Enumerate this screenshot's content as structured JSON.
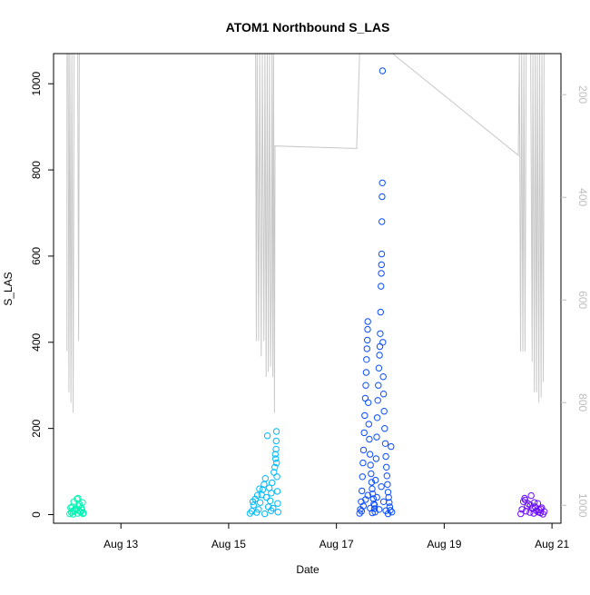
{
  "chart_data": {
    "type": "scatter",
    "title": "ATOM1 Northbound S_LAS",
    "xlabel": "Date",
    "ylabel": "S_LAS",
    "x_ticks": [
      "Aug 13",
      "Aug 15",
      "Aug 17",
      "Aug 19",
      "Aug 21"
    ],
    "y_ticks": [
      "0",
      "200",
      "400",
      "600",
      "800",
      "1000"
    ],
    "y2_ticks": [
      "200",
      "400",
      "600",
      "800",
      "1000"
    ],
    "xlim": [
      "2019-08-11T18:00",
      "2019-08-21T04:00"
    ],
    "ylim": [
      -20,
      1070
    ],
    "y2lim_reversed": [
      120,
      1035
    ],
    "grid": false,
    "legend": "none",
    "colors": {
      "line_series": "#c8c8c8",
      "cluster1": "#00f5b4",
      "cluster2": "#00b8ff",
      "cluster3": "#0a4dff",
      "cluster4": "#6a0dff",
      "axis": "#000000",
      "secondary_axis": "#bdbdbd"
    },
    "series": [
      {
        "marker": "open-circle",
        "color_key": "cluster1",
        "points": [
          [
            "2019-08-12T01:12",
            2
          ],
          [
            "2019-08-12T01:55",
            5
          ],
          [
            "2019-08-12T02:40",
            1
          ],
          [
            "2019-08-12T03:30",
            9
          ],
          [
            "2019-08-12T04:05",
            12
          ],
          [
            "2019-08-12T04:45",
            3
          ],
          [
            "2019-08-12T05:20",
            20
          ],
          [
            "2019-08-12T05:50",
            7
          ],
          [
            "2019-08-12T06:25",
            15
          ],
          [
            "2019-08-12T06:55",
            28
          ],
          [
            "2019-08-12T07:20",
            4
          ],
          [
            "2019-08-12T02:10",
            18
          ],
          [
            "2019-08-12T03:00",
            30
          ],
          [
            "2019-08-12T04:25",
            36
          ],
          [
            "2019-08-12T05:05",
            10
          ],
          [
            "2019-08-12T05:35",
            24
          ],
          [
            "2019-08-12T06:10",
            6
          ],
          [
            "2019-08-12T06:40",
            11
          ],
          [
            "2019-08-12T07:05",
            2
          ],
          [
            "2019-08-12T03:45",
            14
          ],
          [
            "2019-08-12T04:55",
            38
          ],
          [
            "2019-08-12T02:25",
            8
          ],
          [
            "2019-08-12T01:35",
            16
          ]
        ]
      },
      {
        "marker": "open-circle",
        "color_key": "cluster2",
        "points": [
          [
            "2019-08-15T09:30",
            3
          ],
          [
            "2019-08-15T10:20",
            8
          ],
          [
            "2019-08-15T11:05",
            22
          ],
          [
            "2019-08-15T11:50",
            36
          ],
          [
            "2019-08-15T12:30",
            5
          ],
          [
            "2019-08-15T13:20",
            12
          ],
          [
            "2019-08-15T14:00",
            28
          ],
          [
            "2019-08-15T14:40",
            46
          ],
          [
            "2019-08-15T15:10",
            58
          ],
          [
            "2019-08-15T15:45",
            70
          ],
          [
            "2019-08-15T16:20",
            84
          ],
          [
            "2019-08-15T16:50",
            40
          ],
          [
            "2019-08-15T17:15",
            183
          ],
          [
            "2019-08-15T17:40",
            18
          ],
          [
            "2019-08-15T18:05",
            62
          ],
          [
            "2019-08-15T18:30",
            32
          ],
          [
            "2019-08-15T18:55",
            9
          ],
          [
            "2019-08-15T19:20",
            74
          ],
          [
            "2019-08-15T19:45",
            15
          ],
          [
            "2019-08-15T20:10",
            98
          ],
          [
            "2019-08-15T20:35",
            110
          ],
          [
            "2019-08-15T20:55",
            130
          ],
          [
            "2019-08-15T21:05",
            152
          ],
          [
            "2019-08-15T21:10",
            171
          ],
          [
            "2019-08-15T21:15",
            193
          ],
          [
            "2019-08-15T21:20",
            120
          ],
          [
            "2019-08-15T21:30",
            88
          ],
          [
            "2019-08-15T21:40",
            54
          ],
          [
            "2019-08-15T21:50",
            26
          ],
          [
            "2019-08-15T22:00",
            6
          ],
          [
            "2019-08-15T12:50",
            45
          ],
          [
            "2019-08-15T10:45",
            30
          ],
          [
            "2019-08-15T16:05",
            2
          ],
          [
            "2019-08-15T13:45",
            60
          ],
          [
            "2019-08-15T19:00",
            50
          ],
          [
            "2019-08-15T20:45",
            140
          ]
        ]
      },
      {
        "marker": "open-circle",
        "color_key": "cluster3",
        "points": [
          [
            "2019-08-17T10:20",
            3
          ],
          [
            "2019-08-17T10:40",
            12
          ],
          [
            "2019-08-17T11:00",
            30
          ],
          [
            "2019-08-17T11:20",
            55
          ],
          [
            "2019-08-17T11:35",
            88
          ],
          [
            "2019-08-17T11:50",
            120
          ],
          [
            "2019-08-17T12:05",
            150
          ],
          [
            "2019-08-17T12:20",
            190
          ],
          [
            "2019-08-17T12:35",
            230
          ],
          [
            "2019-08-17T12:50",
            270
          ],
          [
            "2019-08-17T13:05",
            300
          ],
          [
            "2019-08-17T13:15",
            330
          ],
          [
            "2019-08-17T13:25",
            360
          ],
          [
            "2019-08-17T13:35",
            385
          ],
          [
            "2019-08-17T13:45",
            405
          ],
          [
            "2019-08-17T13:52",
            430
          ],
          [
            "2019-08-17T13:58",
            448
          ],
          [
            "2019-08-17T14:10",
            260
          ],
          [
            "2019-08-17T14:25",
            210
          ],
          [
            "2019-08-17T14:40",
            175
          ],
          [
            "2019-08-17T14:55",
            140
          ],
          [
            "2019-08-17T15:10",
            115
          ],
          [
            "2019-08-17T15:25",
            95
          ],
          [
            "2019-08-17T15:40",
            75
          ],
          [
            "2019-08-17T15:55",
            60
          ],
          [
            "2019-08-17T16:10",
            48
          ],
          [
            "2019-08-17T16:25",
            37
          ],
          [
            "2019-08-17T16:40",
            25
          ],
          [
            "2019-08-17T16:55",
            14
          ],
          [
            "2019-08-17T17:10",
            6
          ],
          [
            "2019-08-17T17:25",
            80
          ],
          [
            "2019-08-17T17:40",
            130
          ],
          [
            "2019-08-17T17:55",
            180
          ],
          [
            "2019-08-17T18:10",
            225
          ],
          [
            "2019-08-17T18:25",
            265
          ],
          [
            "2019-08-17T18:40",
            300
          ],
          [
            "2019-08-17T18:55",
            340
          ],
          [
            "2019-08-17T19:10",
            370
          ],
          [
            "2019-08-17T19:20",
            390
          ],
          [
            "2019-08-17T19:30",
            420
          ],
          [
            "2019-08-17T19:40",
            470
          ],
          [
            "2019-08-17T19:50",
            530
          ],
          [
            "2019-08-17T20:00",
            560
          ],
          [
            "2019-08-17T20:05",
            580
          ],
          [
            "2019-08-17T20:10",
            605
          ],
          [
            "2019-08-17T20:15",
            680
          ],
          [
            "2019-08-17T20:20",
            738
          ],
          [
            "2019-08-17T20:25",
            770
          ],
          [
            "2019-08-17T20:30",
            1030
          ],
          [
            "2019-08-17T20:40",
            400
          ],
          [
            "2019-08-17T20:50",
            320
          ],
          [
            "2019-08-17T21:00",
            280
          ],
          [
            "2019-08-17T21:15",
            240
          ],
          [
            "2019-08-17T21:30",
            200
          ],
          [
            "2019-08-17T21:45",
            165
          ],
          [
            "2019-08-17T22:00",
            135
          ],
          [
            "2019-08-17T22:15",
            110
          ],
          [
            "2019-08-17T22:30",
            90
          ],
          [
            "2019-08-17T22:45",
            70
          ],
          [
            "2019-08-17T23:00",
            52
          ],
          [
            "2019-08-17T23:15",
            40
          ],
          [
            "2019-08-17T23:30",
            28
          ],
          [
            "2019-08-17T23:45",
            18
          ],
          [
            "2019-08-18T00:00",
            10
          ],
          [
            "2019-08-18T00:20",
            158
          ],
          [
            "2019-08-18T00:40",
            6
          ],
          [
            "2019-08-17T11:10",
            8
          ],
          [
            "2019-08-17T12:00",
            20
          ],
          [
            "2019-08-17T13:00",
            35
          ],
          [
            "2019-08-17T14:00",
            45
          ],
          [
            "2019-08-17T15:00",
            15
          ],
          [
            "2019-08-17T16:00",
            4
          ],
          [
            "2019-08-17T17:00",
            22
          ],
          [
            "2019-08-17T18:00",
            40
          ],
          [
            "2019-08-17T19:00",
            12
          ],
          [
            "2019-08-17T20:00",
            65
          ],
          [
            "2019-08-17T21:00",
            30
          ],
          [
            "2019-08-17T22:00",
            9
          ],
          [
            "2019-08-17T23:00",
            2
          ]
        ]
      },
      {
        "marker": "open-circle",
        "color_key": "cluster4",
        "points": [
          [
            "2019-08-20T10:05",
            2
          ],
          [
            "2019-08-20T10:40",
            12
          ],
          [
            "2019-08-20T11:15",
            30
          ],
          [
            "2019-08-20T11:50",
            38
          ],
          [
            "2019-08-20T12:25",
            8
          ],
          [
            "2019-08-20T13:00",
            20
          ],
          [
            "2019-08-20T13:35",
            25
          ],
          [
            "2019-08-20T14:10",
            5
          ],
          [
            "2019-08-20T14:45",
            44
          ],
          [
            "2019-08-20T15:20",
            14
          ],
          [
            "2019-08-20T15:55",
            3
          ],
          [
            "2019-08-20T16:30",
            18
          ],
          [
            "2019-08-20T17:05",
            9
          ],
          [
            "2019-08-20T17:40",
            26
          ],
          [
            "2019-08-20T18:15",
            11
          ],
          [
            "2019-08-20T18:50",
            4
          ],
          [
            "2019-08-20T19:25",
            16
          ],
          [
            "2019-08-20T20:00",
            1
          ],
          [
            "2019-08-20T20:35",
            7
          ],
          [
            "2019-08-20T12:05",
            34
          ],
          [
            "2019-08-20T14:25",
            22
          ],
          [
            "2019-08-20T16:10",
            28
          ],
          [
            "2019-08-20T18:00",
            6
          ],
          [
            "2019-08-20T19:05",
            13
          ]
        ]
      }
    ],
    "line_series": {
      "axis": "right-reversed",
      "color_key": "line_series",
      "points": [
        [
          "2019-08-12T00:00",
          700
        ],
        [
          "2019-08-12T00:00",
          120
        ],
        [
          "2019-08-12T00:30",
          120
        ],
        [
          "2019-08-12T00:50",
          780
        ],
        [
          "2019-08-12T01:15",
          120
        ],
        [
          "2019-08-12T01:45",
          800
        ],
        [
          "2019-08-12T02:10",
          120
        ],
        [
          "2019-08-12T02:45",
          820
        ],
        [
          "2019-08-12T03:10",
          120
        ],
        [
          "2019-08-12T04:00",
          120
        ],
        [
          "2019-08-12T04:45",
          120
        ],
        [
          "2019-08-12T05:10",
          680
        ],
        [
          "2019-08-12T05:30",
          120
        ],
        [
          "2019-08-15T12:00",
          120
        ],
        [
          "2019-08-15T12:20",
          680
        ],
        [
          "2019-08-15T12:40",
          120
        ],
        [
          "2019-08-15T13:20",
          680
        ],
        [
          "2019-08-15T13:50",
          120
        ],
        [
          "2019-08-15T14:30",
          710
        ],
        [
          "2019-08-15T15:00",
          120
        ],
        [
          "2019-08-15T15:40",
          680
        ],
        [
          "2019-08-15T16:10",
          120
        ],
        [
          "2019-08-15T16:40",
          750
        ],
        [
          "2019-08-15T17:10",
          120
        ],
        [
          "2019-08-15T17:40",
          740
        ],
        [
          "2019-08-15T18:10",
          120
        ],
        [
          "2019-08-15T18:40",
          730
        ],
        [
          "2019-08-15T19:00",
          580
        ],
        [
          "2019-08-15T19:20",
          120
        ],
        [
          "2019-08-15T19:40",
          750
        ],
        [
          "2019-08-15T20:00",
          120
        ],
        [
          "2019-08-15T20:25",
          820
        ],
        [
          "2019-08-15T20:40",
          300
        ],
        [
          "2019-08-17T09:00",
          305
        ],
        [
          "2019-08-17T10:20",
          120
        ],
        [
          "2019-08-17T10:50",
          120
        ],
        [
          "2019-08-17T11:20",
          120
        ],
        [
          "2019-08-17T12:00",
          120
        ],
        [
          "2019-08-17T12:40",
          120
        ],
        [
          "2019-08-17T13:20",
          120
        ],
        [
          "2019-08-17T14:00",
          120
        ],
        [
          "2019-08-17T14:40",
          120
        ],
        [
          "2019-08-17T15:20",
          120
        ],
        [
          "2019-08-17T16:00",
          120
        ],
        [
          "2019-08-17T16:40",
          120
        ],
        [
          "2019-08-17T17:20",
          120
        ],
        [
          "2019-08-17T18:00",
          120
        ],
        [
          "2019-08-17T19:00",
          120
        ],
        [
          "2019-08-17T20:00",
          120
        ],
        [
          "2019-08-17T21:00",
          120
        ],
        [
          "2019-08-17T22:00",
          120
        ],
        [
          "2019-08-18T01:00",
          120
        ],
        [
          "2019-08-20T09:00",
          318
        ],
        [
          "2019-08-20T09:30",
          120
        ],
        [
          "2019-08-20T10:00",
          700
        ],
        [
          "2019-08-20T10:30",
          120
        ],
        [
          "2019-08-20T11:00",
          700
        ],
        [
          "2019-08-20T11:30",
          120
        ],
        [
          "2019-08-20T12:00",
          700
        ],
        [
          "2019-08-20T12:30",
          120
        ],
        [
          "2019-08-20T13:30",
          120
        ],
        [
          "2019-08-20T14:30",
          120
        ],
        [
          "2019-08-20T15:10",
          720
        ],
        [
          "2019-08-20T15:30",
          120
        ],
        [
          "2019-08-20T16:10",
          780
        ],
        [
          "2019-08-20T16:30",
          120
        ],
        [
          "2019-08-20T17:10",
          780
        ],
        [
          "2019-08-20T17:30",
          120
        ],
        [
          "2019-08-20T18:10",
          800
        ],
        [
          "2019-08-20T18:30",
          120
        ],
        [
          "2019-08-20T19:10",
          790
        ],
        [
          "2019-08-20T19:30",
          120
        ],
        [
          "2019-08-20T20:10",
          760
        ],
        [
          "2019-08-20T20:30",
          120
        ]
      ]
    }
  }
}
